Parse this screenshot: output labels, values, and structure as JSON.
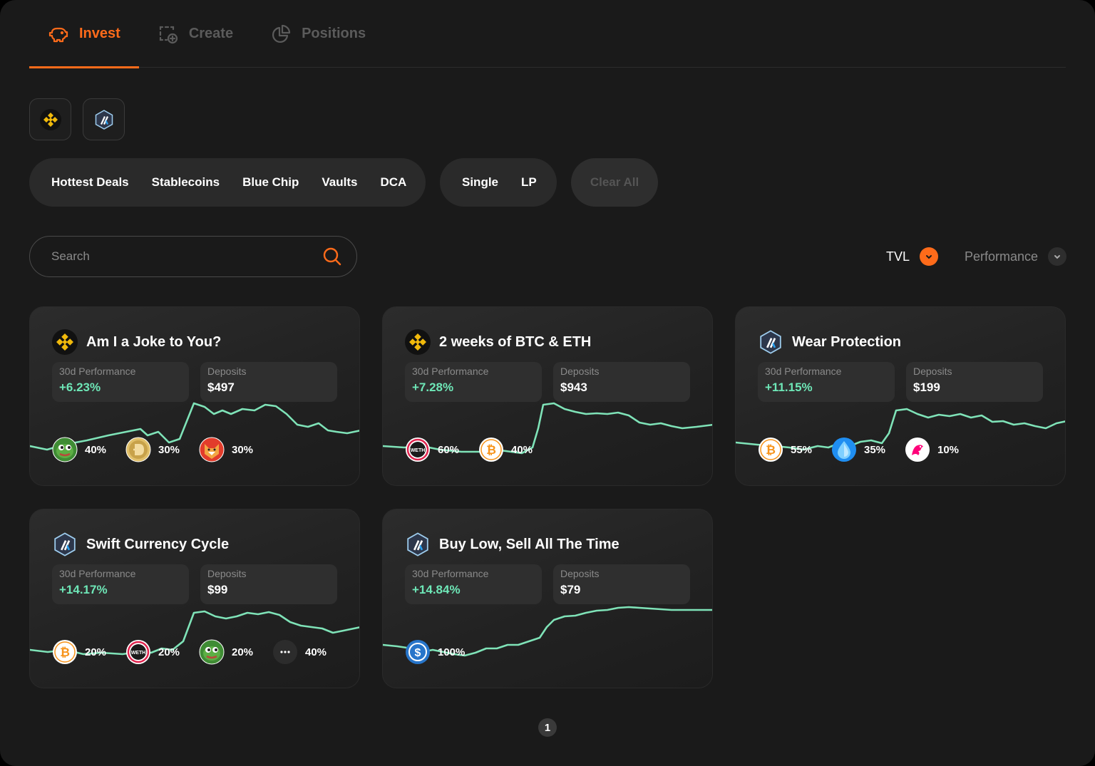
{
  "tabs": [
    {
      "label": "Invest",
      "icon": "piggy-bank-icon",
      "active": true
    },
    {
      "label": "Create",
      "icon": "create-icon",
      "active": false
    },
    {
      "label": "Positions",
      "icon": "pie-chart-icon",
      "active": false
    }
  ],
  "chains": [
    {
      "name": "bnb-chain",
      "icon": "bnb-chain-icon"
    },
    {
      "name": "arbitrum",
      "icon": "arbitrum-icon"
    }
  ],
  "filters": {
    "categories": [
      "Hottest Deals",
      "Stablecoins",
      "Blue Chip",
      "Vaults",
      "DCA"
    ],
    "types": [
      "Single",
      "LP"
    ],
    "clear_label": "Clear All"
  },
  "search": {
    "placeholder": "Search",
    "icon": "search-icon"
  },
  "sort": {
    "tvl_label": "TVL",
    "performance_label": "Performance"
  },
  "colors": {
    "accent": "#ff6b1a",
    "positive": "#6ee7b7",
    "background": "#1a1a1a",
    "card": "#262626"
  },
  "cards": [
    {
      "title": "Am I a Joke to You?",
      "chain_icon": "bnb-chain-icon",
      "perf_label": "30d Performance",
      "perf_value": "+6.23%",
      "deposits_label": "Deposits",
      "deposits_value": "$497",
      "assets": [
        {
          "icon": "pepe-icon",
          "pct": "40%"
        },
        {
          "icon": "doge-icon",
          "pct": "30%"
        },
        {
          "icon": "shiba-icon",
          "pct": "30%"
        }
      ]
    },
    {
      "title": "2 weeks of BTC & ETH",
      "chain_icon": "bnb-chain-icon",
      "perf_label": "30d Performance",
      "perf_value": "+7.28%",
      "deposits_label": "Deposits",
      "deposits_value": "$943",
      "assets": [
        {
          "icon": "weth-icon",
          "pct": "60%"
        },
        {
          "icon": "bitcoin-icon",
          "pct": "40%"
        }
      ]
    },
    {
      "title": "Wear Protection",
      "chain_icon": "arbitrum-icon",
      "perf_label": "30d Performance",
      "perf_value": "+11.15%",
      "deposits_label": "Deposits",
      "deposits_value": "$199",
      "assets": [
        {
          "icon": "bitcoin-icon",
          "pct": "55%"
        },
        {
          "icon": "water-drop-icon",
          "pct": "35%"
        },
        {
          "icon": "uniswap-icon",
          "pct": "10%"
        }
      ]
    },
    {
      "title": "Swift Currency Cycle",
      "chain_icon": "arbitrum-icon",
      "perf_label": "30d Performance",
      "perf_value": "+14.17%",
      "deposits_label": "Deposits",
      "deposits_value": "$99",
      "assets": [
        {
          "icon": "bitcoin-icon",
          "pct": "20%"
        },
        {
          "icon": "weth-icon",
          "pct": "20%"
        },
        {
          "icon": "pepe-icon",
          "pct": "20%"
        },
        {
          "icon": "more-icon",
          "pct": "40%"
        }
      ]
    },
    {
      "title": "Buy Low, Sell All The Time",
      "chain_icon": "arbitrum-icon",
      "perf_label": "30d Performance",
      "perf_value": "+14.84%",
      "deposits_label": "Deposits",
      "deposits_value": "$79",
      "assets": [
        {
          "icon": "usdc-icon",
          "pct": "100%"
        }
      ]
    }
  ],
  "pagination": {
    "current": "1"
  }
}
